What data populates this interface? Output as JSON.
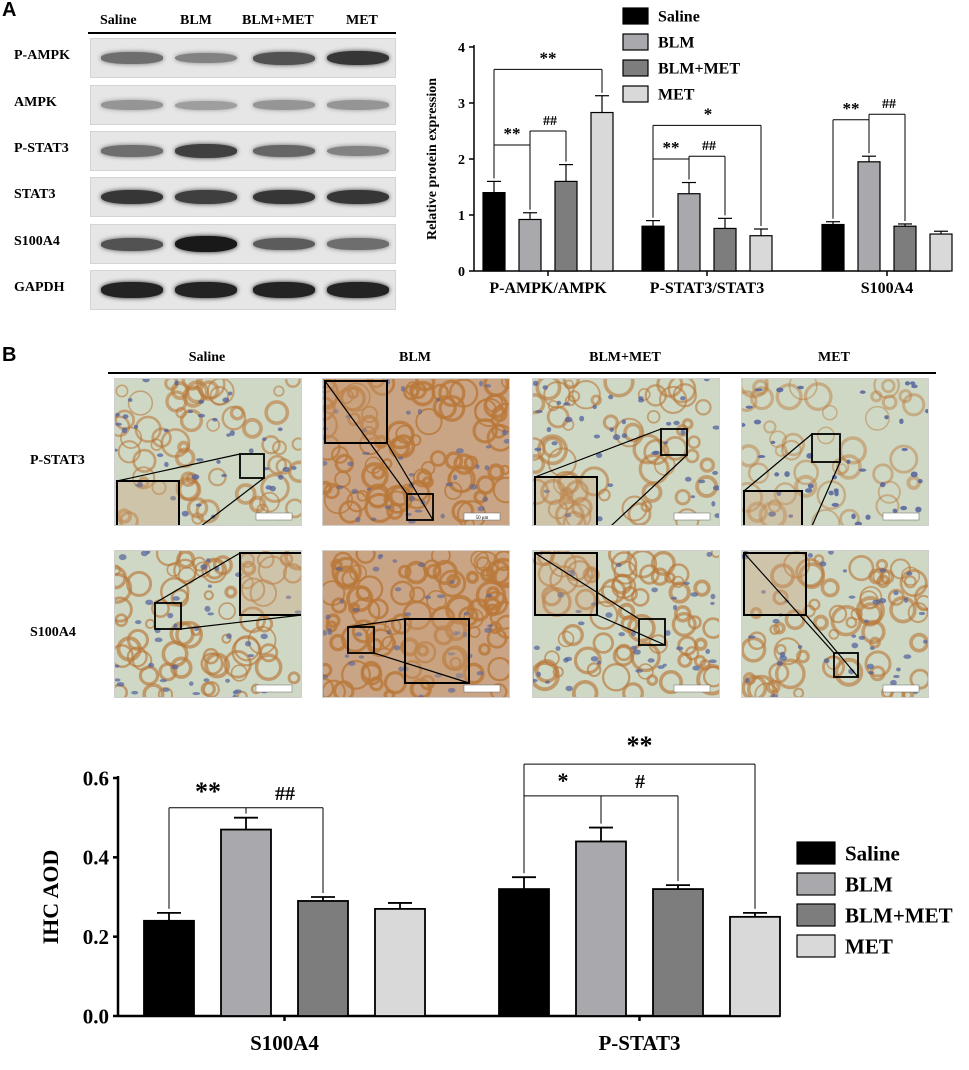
{
  "panel_a": {
    "letter": "A",
    "blot": {
      "groups": [
        "Saline",
        "BLM",
        "BLM+MET",
        "MET"
      ],
      "rows": [
        {
          "label": "P-AMPK",
          "intensities": [
            0.55,
            0.45,
            0.7,
            0.85
          ]
        },
        {
          "label": "AMPK",
          "intensities": [
            0.35,
            0.3,
            0.35,
            0.35
          ]
        },
        {
          "label": "P-STAT3",
          "intensities": [
            0.55,
            0.8,
            0.6,
            0.45
          ]
        },
        {
          "label": "STAT3",
          "intensities": [
            0.85,
            0.8,
            0.85,
            0.85
          ]
        },
        {
          "label": "S100A4",
          "intensities": [
            0.7,
            1.0,
            0.65,
            0.55
          ]
        },
        {
          "label": "GAPDH",
          "intensities": [
            0.95,
            0.95,
            0.95,
            0.95
          ]
        }
      ]
    }
  },
  "panel_b": {
    "letter": "B",
    "ihc_groups": [
      "Saline",
      "BLM",
      "BLM+MET",
      "MET"
    ],
    "ihc_rows": [
      "P-STAT3",
      "S100A4"
    ],
    "scale_bar_label": "50 μm"
  },
  "colors": {
    "saline": "#000000",
    "blm": "#a8a8ad",
    "blm_met": "#7d7d7d",
    "met": "#d9d9d9",
    "stain_brown": "#b8783a",
    "nuclei_blue": "#4f5f9c",
    "background_tissue": "#cfd8c4"
  },
  "chart_data": [
    {
      "type": "bar",
      "ylabel": "Relative protein expression",
      "ylim": [
        0,
        4
      ],
      "yticks": [
        "0",
        "1",
        "2",
        "3",
        "4"
      ],
      "categories": [
        "P-AMPK/AMPK",
        "P-STAT3/STAT3",
        "S100A4"
      ],
      "legend_position": "top-right",
      "series": [
        {
          "name": "Saline",
          "values": [
            1.4,
            0.8,
            0.83
          ],
          "errors": [
            0.2,
            0.1,
            0.05
          ]
        },
        {
          "name": "BLM",
          "values": [
            0.92,
            1.38,
            1.95
          ],
          "errors": [
            0.12,
            0.2,
            0.1
          ]
        },
        {
          "name": "BLM+MET",
          "values": [
            1.6,
            0.76,
            0.8
          ],
          "errors": [
            0.3,
            0.18,
            0.04
          ]
        },
        {
          "name": "MET",
          "values": [
            2.83,
            0.63,
            0.66
          ],
          "errors": [
            0.3,
            0.12,
            0.05
          ]
        }
      ],
      "annotations": [
        "**",
        "**",
        "##",
        "*",
        "**",
        "##",
        "**",
        "##"
      ]
    },
    {
      "type": "bar",
      "ylabel": "IHC AOD",
      "ylim": [
        0,
        0.6
      ],
      "yticks": [
        "0.0",
        "0.2",
        "0.4",
        "0.6"
      ],
      "categories": [
        "S100A4",
        "P-STAT3"
      ],
      "legend_position": "right",
      "series": [
        {
          "name": "Saline",
          "values": [
            0.24,
            0.32
          ],
          "errors": [
            0.02,
            0.03
          ]
        },
        {
          "name": "BLM",
          "values": [
            0.47,
            0.44
          ],
          "errors": [
            0.03,
            0.035
          ]
        },
        {
          "name": "BLM+MET",
          "values": [
            0.29,
            0.32
          ],
          "errors": [
            0.01,
            0.01
          ]
        },
        {
          "name": "MET",
          "values": [
            0.27,
            0.25
          ],
          "errors": [
            0.015,
            0.01
          ]
        }
      ],
      "annotations": [
        "**",
        "##",
        "**",
        "*",
        "#"
      ]
    }
  ]
}
